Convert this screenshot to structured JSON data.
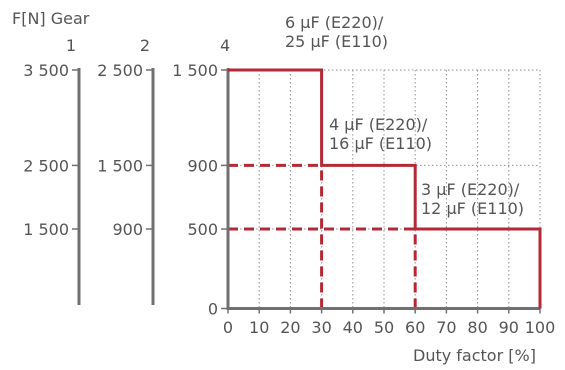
{
  "chart_data": {
    "type": "line",
    "title": "",
    "ylabel": "F[N] Gear",
    "xlabel": "Duty factor [%]",
    "xlim": [
      0,
      100
    ],
    "ylim": [
      0,
      1500
    ],
    "x_ticks": [
      "0",
      "10",
      "20",
      "30",
      "40",
      "50",
      "60",
      "70",
      "80",
      "90",
      "100"
    ],
    "gear_axes": [
      {
        "name": "1",
        "ticks": [
          {
            "label": "3 500",
            "value": 1500
          },
          {
            "label": "2 500",
            "value": 900
          },
          {
            "label": "1 500",
            "value": 500
          }
        ]
      },
      {
        "name": "2",
        "ticks": [
          {
            "label": "2 500",
            "value": 1500
          },
          {
            "label": "1 500",
            "value": 900
          },
          {
            "label": "900",
            "value": 500
          }
        ]
      },
      {
        "name": "4",
        "ticks": [
          {
            "label": "1 500",
            "value": 1500
          },
          {
            "label": "900",
            "value": 900
          },
          {
            "label": "500",
            "value": 500
          },
          {
            "label": "0",
            "value": 0
          }
        ]
      }
    ],
    "step_line": {
      "x": [
        0,
        30,
        30,
        60,
        60,
        100,
        100
      ],
      "y": [
        1500,
        1500,
        900,
        900,
        500,
        500,
        0
      ]
    },
    "dashed_guides": [
      {
        "x": [
          0,
          30
        ],
        "y": [
          900,
          900
        ]
      },
      {
        "x": [
          0,
          60
        ],
        "y": [
          500,
          500
        ]
      },
      {
        "x": [
          30,
          30
        ],
        "y": [
          0,
          900
        ]
      },
      {
        "x": [
          60,
          60
        ],
        "y": [
          0,
          500
        ]
      }
    ],
    "annotations": [
      {
        "lines": [
          "6 µF (E220)/",
          "25 µF (E110)"
        ],
        "x": 30,
        "y": 1500
      },
      {
        "lines": [
          "4 µF (E220)/",
          "16 µF (E110)"
        ],
        "x": 60,
        "y": 900
      },
      {
        "lines": [
          "3 µF (E220)/",
          "12 µF (E110)"
        ],
        "x": 100,
        "y": 500
      }
    ],
    "grid": true,
    "grid_style": "dotted"
  }
}
